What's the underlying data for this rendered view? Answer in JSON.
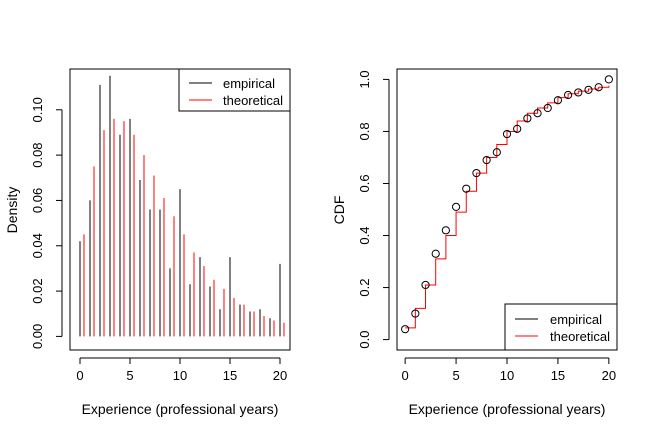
{
  "chart_data": [
    {
      "type": "bar",
      "panel": "left",
      "xlabel": "Experience (professional years)",
      "ylabel": "Density",
      "xlim": [
        -1,
        21
      ],
      "ylim": [
        -0.006,
        0.118
      ],
      "xticks": [
        0,
        5,
        10,
        15,
        20
      ],
      "xtick_labels": [
        "0",
        "5",
        "10",
        "15",
        "20"
      ],
      "yticks": [
        0.0,
        0.02,
        0.04,
        0.06,
        0.08,
        0.1
      ],
      "ytick_labels": [
        "0.00",
        "0.02",
        "0.04",
        "0.06",
        "0.08",
        "0.10"
      ],
      "legend": {
        "position": "top-right",
        "entries": [
          {
            "label": "empirical",
            "color": "#000000"
          },
          {
            "label": "theoretical",
            "color": "#ff0000"
          }
        ]
      },
      "series": [
        {
          "name": "empirical",
          "color": "#000000",
          "x": [
            0,
            1,
            2,
            3,
            4,
            5,
            6,
            7,
            8,
            9,
            10,
            11,
            12,
            13,
            14,
            15,
            16,
            17,
            18,
            19,
            20
          ],
          "values": [
            0.042,
            0.06,
            0.111,
            0.115,
            0.089,
            0.096,
            0.069,
            0.056,
            0.056,
            0.03,
            0.065,
            0.023,
            0.035,
            0.022,
            0.012,
            0.035,
            0.014,
            0.011,
            0.012,
            0.008,
            0.032
          ]
        },
        {
          "name": "theoretical",
          "color": "#ff0000",
          "x": [
            0,
            1,
            2,
            3,
            4,
            5,
            6,
            7,
            8,
            9,
            10,
            11,
            12,
            13,
            14,
            15,
            16,
            17,
            18,
            19,
            20
          ],
          "values": [
            0.045,
            0.075,
            0.091,
            0.096,
            0.095,
            0.089,
            0.08,
            0.071,
            0.061,
            0.053,
            0.045,
            0.037,
            0.031,
            0.025,
            0.021,
            0.017,
            0.014,
            0.011,
            0.009,
            0.007,
            0.006
          ]
        }
      ]
    },
    {
      "type": "line",
      "panel": "right",
      "xlabel": "Experience (professional years)",
      "ylabel": "CDF",
      "xlim": [
        -0.8,
        20.8
      ],
      "ylim": [
        -0.04,
        1.04
      ],
      "xticks": [
        0,
        5,
        10,
        15,
        20
      ],
      "xtick_labels": [
        "0",
        "5",
        "10",
        "15",
        "20"
      ],
      "yticks": [
        0.0,
        0.2,
        0.4,
        0.6,
        0.8,
        1.0
      ],
      "ytick_labels": [
        "0.0",
        "0.2",
        "0.4",
        "0.6",
        "0.8",
        "1.0"
      ],
      "legend": {
        "position": "bottom-right",
        "entries": [
          {
            "label": "empirical",
            "color": "#000000"
          },
          {
            "label": "theoretical",
            "color": "#ff0000"
          }
        ]
      },
      "series": [
        {
          "name": "empirical",
          "style": "points",
          "color": "#000000",
          "x": [
            0,
            1,
            2,
            3,
            4,
            5,
            6,
            7,
            8,
            9,
            10,
            11,
            12,
            13,
            14,
            15,
            16,
            17,
            18,
            19,
            20
          ],
          "values": [
            0.04,
            0.1,
            0.21,
            0.33,
            0.42,
            0.51,
            0.58,
            0.64,
            0.69,
            0.72,
            0.79,
            0.81,
            0.85,
            0.87,
            0.89,
            0.92,
            0.94,
            0.95,
            0.96,
            0.97,
            1.0
          ]
        },
        {
          "name": "theoretical",
          "style": "step",
          "color": "#ff0000",
          "x": [
            0,
            1,
            2,
            3,
            4,
            5,
            6,
            7,
            8,
            9,
            10,
            11,
            12,
            13,
            14,
            15,
            16,
            17,
            18,
            19,
            20
          ],
          "values": [
            0.045,
            0.12,
            0.21,
            0.31,
            0.4,
            0.49,
            0.57,
            0.64,
            0.7,
            0.75,
            0.8,
            0.84,
            0.87,
            0.89,
            0.91,
            0.93,
            0.945,
            0.955,
            0.963,
            0.97,
            0.976
          ]
        }
      ]
    }
  ]
}
